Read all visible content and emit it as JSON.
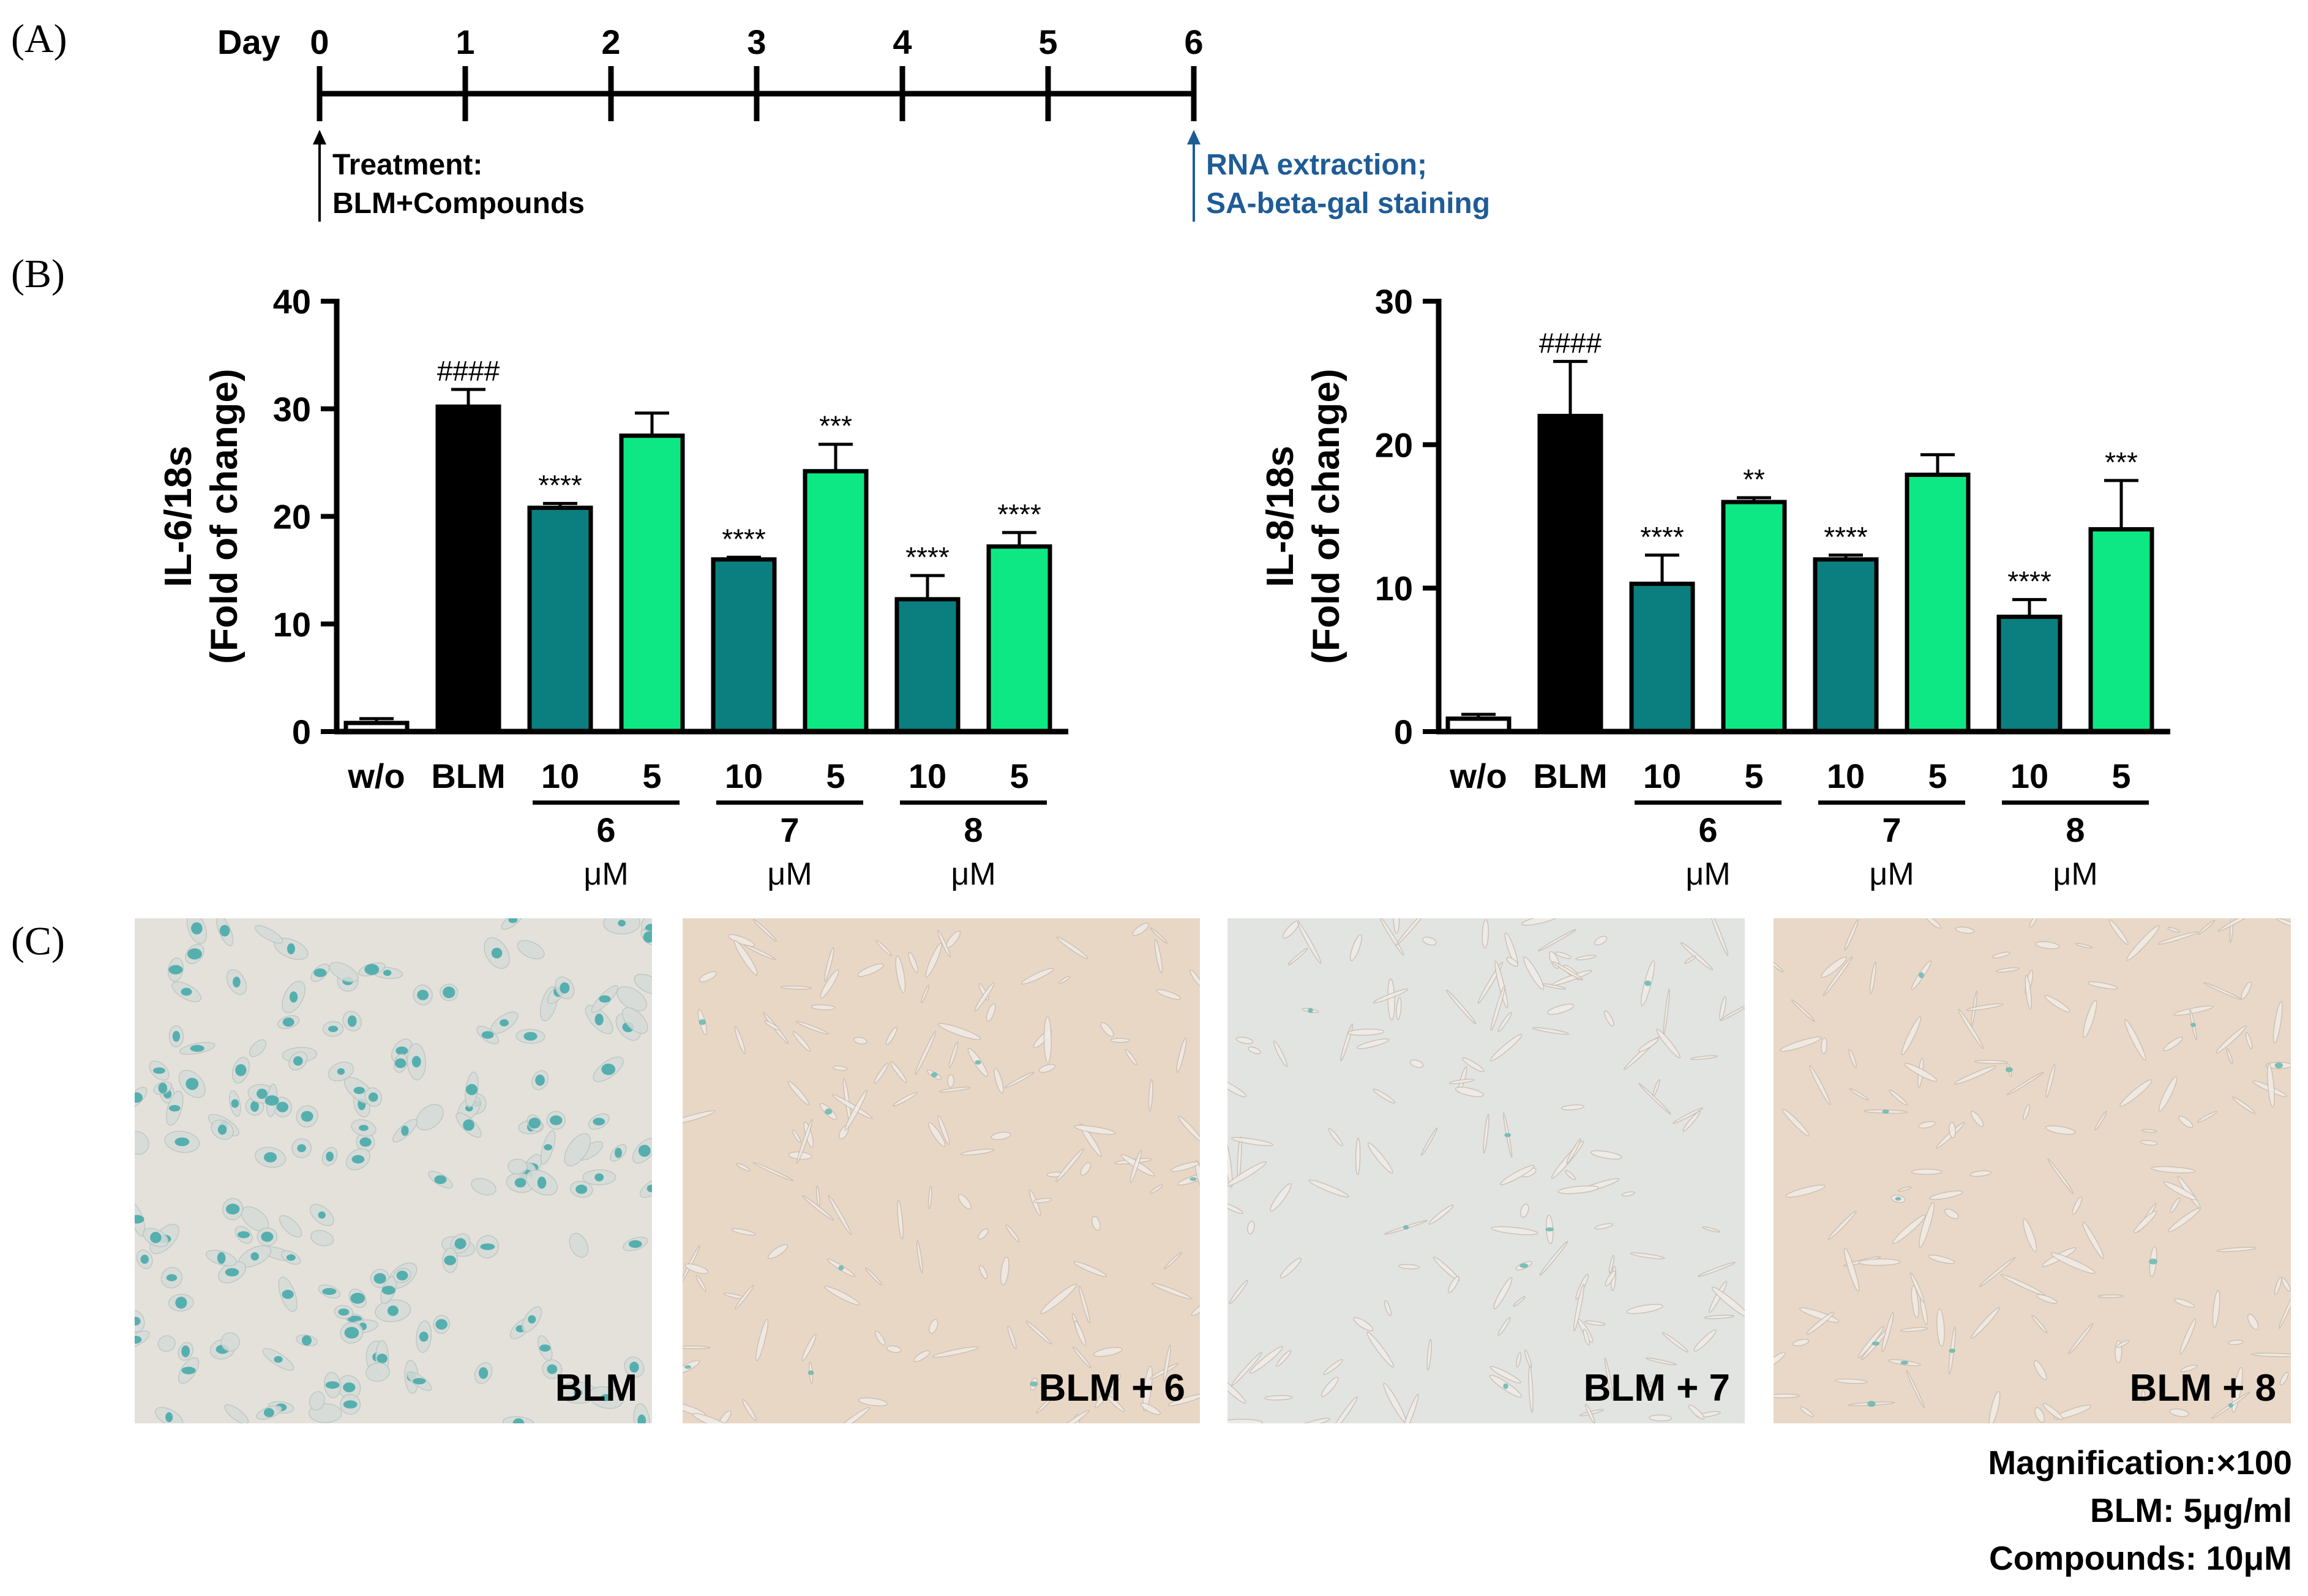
{
  "panel_labels": {
    "a": "(A)",
    "b": "(B)",
    "c": "(C)"
  },
  "timeline": {
    "day_label": "Day",
    "ticks": [
      "0",
      "1",
      "2",
      "3",
      "4",
      "5",
      "6"
    ],
    "treatment_line1": "Treatment:",
    "treatment_line2": "BLM+Compounds",
    "endpoint_line1": "RNA extraction;",
    "endpoint_line2": "SA-beta-gal staining",
    "endpoint_color": "#1f5c96"
  },
  "colors": {
    "wo": "#ffffff",
    "blm": "#000000",
    "dose10": "#0b7f7f",
    "dose5": "#0ee884"
  },
  "chart_data": [
    {
      "type": "bar",
      "ylabel_line1": "IL-6/18s",
      "ylabel_line2": "(Fold of change)",
      "ylim": [
        0,
        40
      ],
      "yticks": [
        0,
        10,
        20,
        30,
        40
      ],
      "categories": [
        "w/o",
        "BLM",
        "10",
        "5",
        "10",
        "5",
        "10",
        "5"
      ],
      "values": [
        0.8,
        30.2,
        20.8,
        27.5,
        16.0,
        24.2,
        12.3,
        17.2
      ],
      "errors": [
        0.4,
        1.6,
        0.4,
        2.1,
        0.2,
        2.5,
        2.2,
        1.3
      ],
      "significance": [
        "",
        "####",
        "****",
        "",
        "****",
        "***",
        "****",
        "****"
      ],
      "color_keys": [
        "wo",
        "blm",
        "dose10",
        "dose5",
        "dose10",
        "dose5",
        "dose10",
        "dose5"
      ],
      "groups": [
        {
          "label": "6",
          "unit": "μM",
          "bars": [
            2,
            3
          ]
        },
        {
          "label": "7",
          "unit": "μM",
          "bars": [
            4,
            5
          ]
        },
        {
          "label": "8",
          "unit": "μM",
          "bars": [
            6,
            7
          ]
        }
      ]
    },
    {
      "type": "bar",
      "ylabel_line1": "IL-8/18s",
      "ylabel_line2": "(Fold of change)",
      "ylim": [
        0,
        30
      ],
      "yticks": [
        0,
        10,
        20,
        30
      ],
      "categories": [
        "w/o",
        "BLM",
        "10",
        "5",
        "10",
        "5",
        "10",
        "5"
      ],
      "values": [
        0.9,
        22.0,
        10.3,
        16.0,
        12.0,
        17.9,
        8.0,
        14.1
      ],
      "errors": [
        0.3,
        3.8,
        2.0,
        0.3,
        0.3,
        1.4,
        1.2,
        3.4
      ],
      "significance": [
        "",
        "####",
        "****",
        "**",
        "****",
        "",
        "****",
        "***"
      ],
      "color_keys": [
        "wo",
        "blm",
        "dose10",
        "dose5",
        "dose10",
        "dose5",
        "dose10",
        "dose5"
      ],
      "groups": [
        {
          "label": "6",
          "unit": "μM",
          "bars": [
            2,
            3
          ]
        },
        {
          "label": "7",
          "unit": "μM",
          "bars": [
            4,
            5
          ]
        },
        {
          "label": "8",
          "unit": "μM",
          "bars": [
            6,
            7
          ]
        }
      ]
    }
  ],
  "micrographs": [
    {
      "label": "BLM",
      "background": "#e4e1db",
      "stained": "heavy"
    },
    {
      "label": "BLM + 6",
      "background": "#e9d7c6",
      "stained": "sparse"
    },
    {
      "label": "BLM + 7",
      "background": "#e2e4e2",
      "stained": "sparse"
    },
    {
      "label": "BLM + 8",
      "background": "#e9d8c7",
      "stained": "sparse"
    }
  ],
  "notes": {
    "magnification": "Magnification:×100",
    "blm": "BLM: 5μg/ml",
    "compounds": "Compounds: 10μM"
  }
}
